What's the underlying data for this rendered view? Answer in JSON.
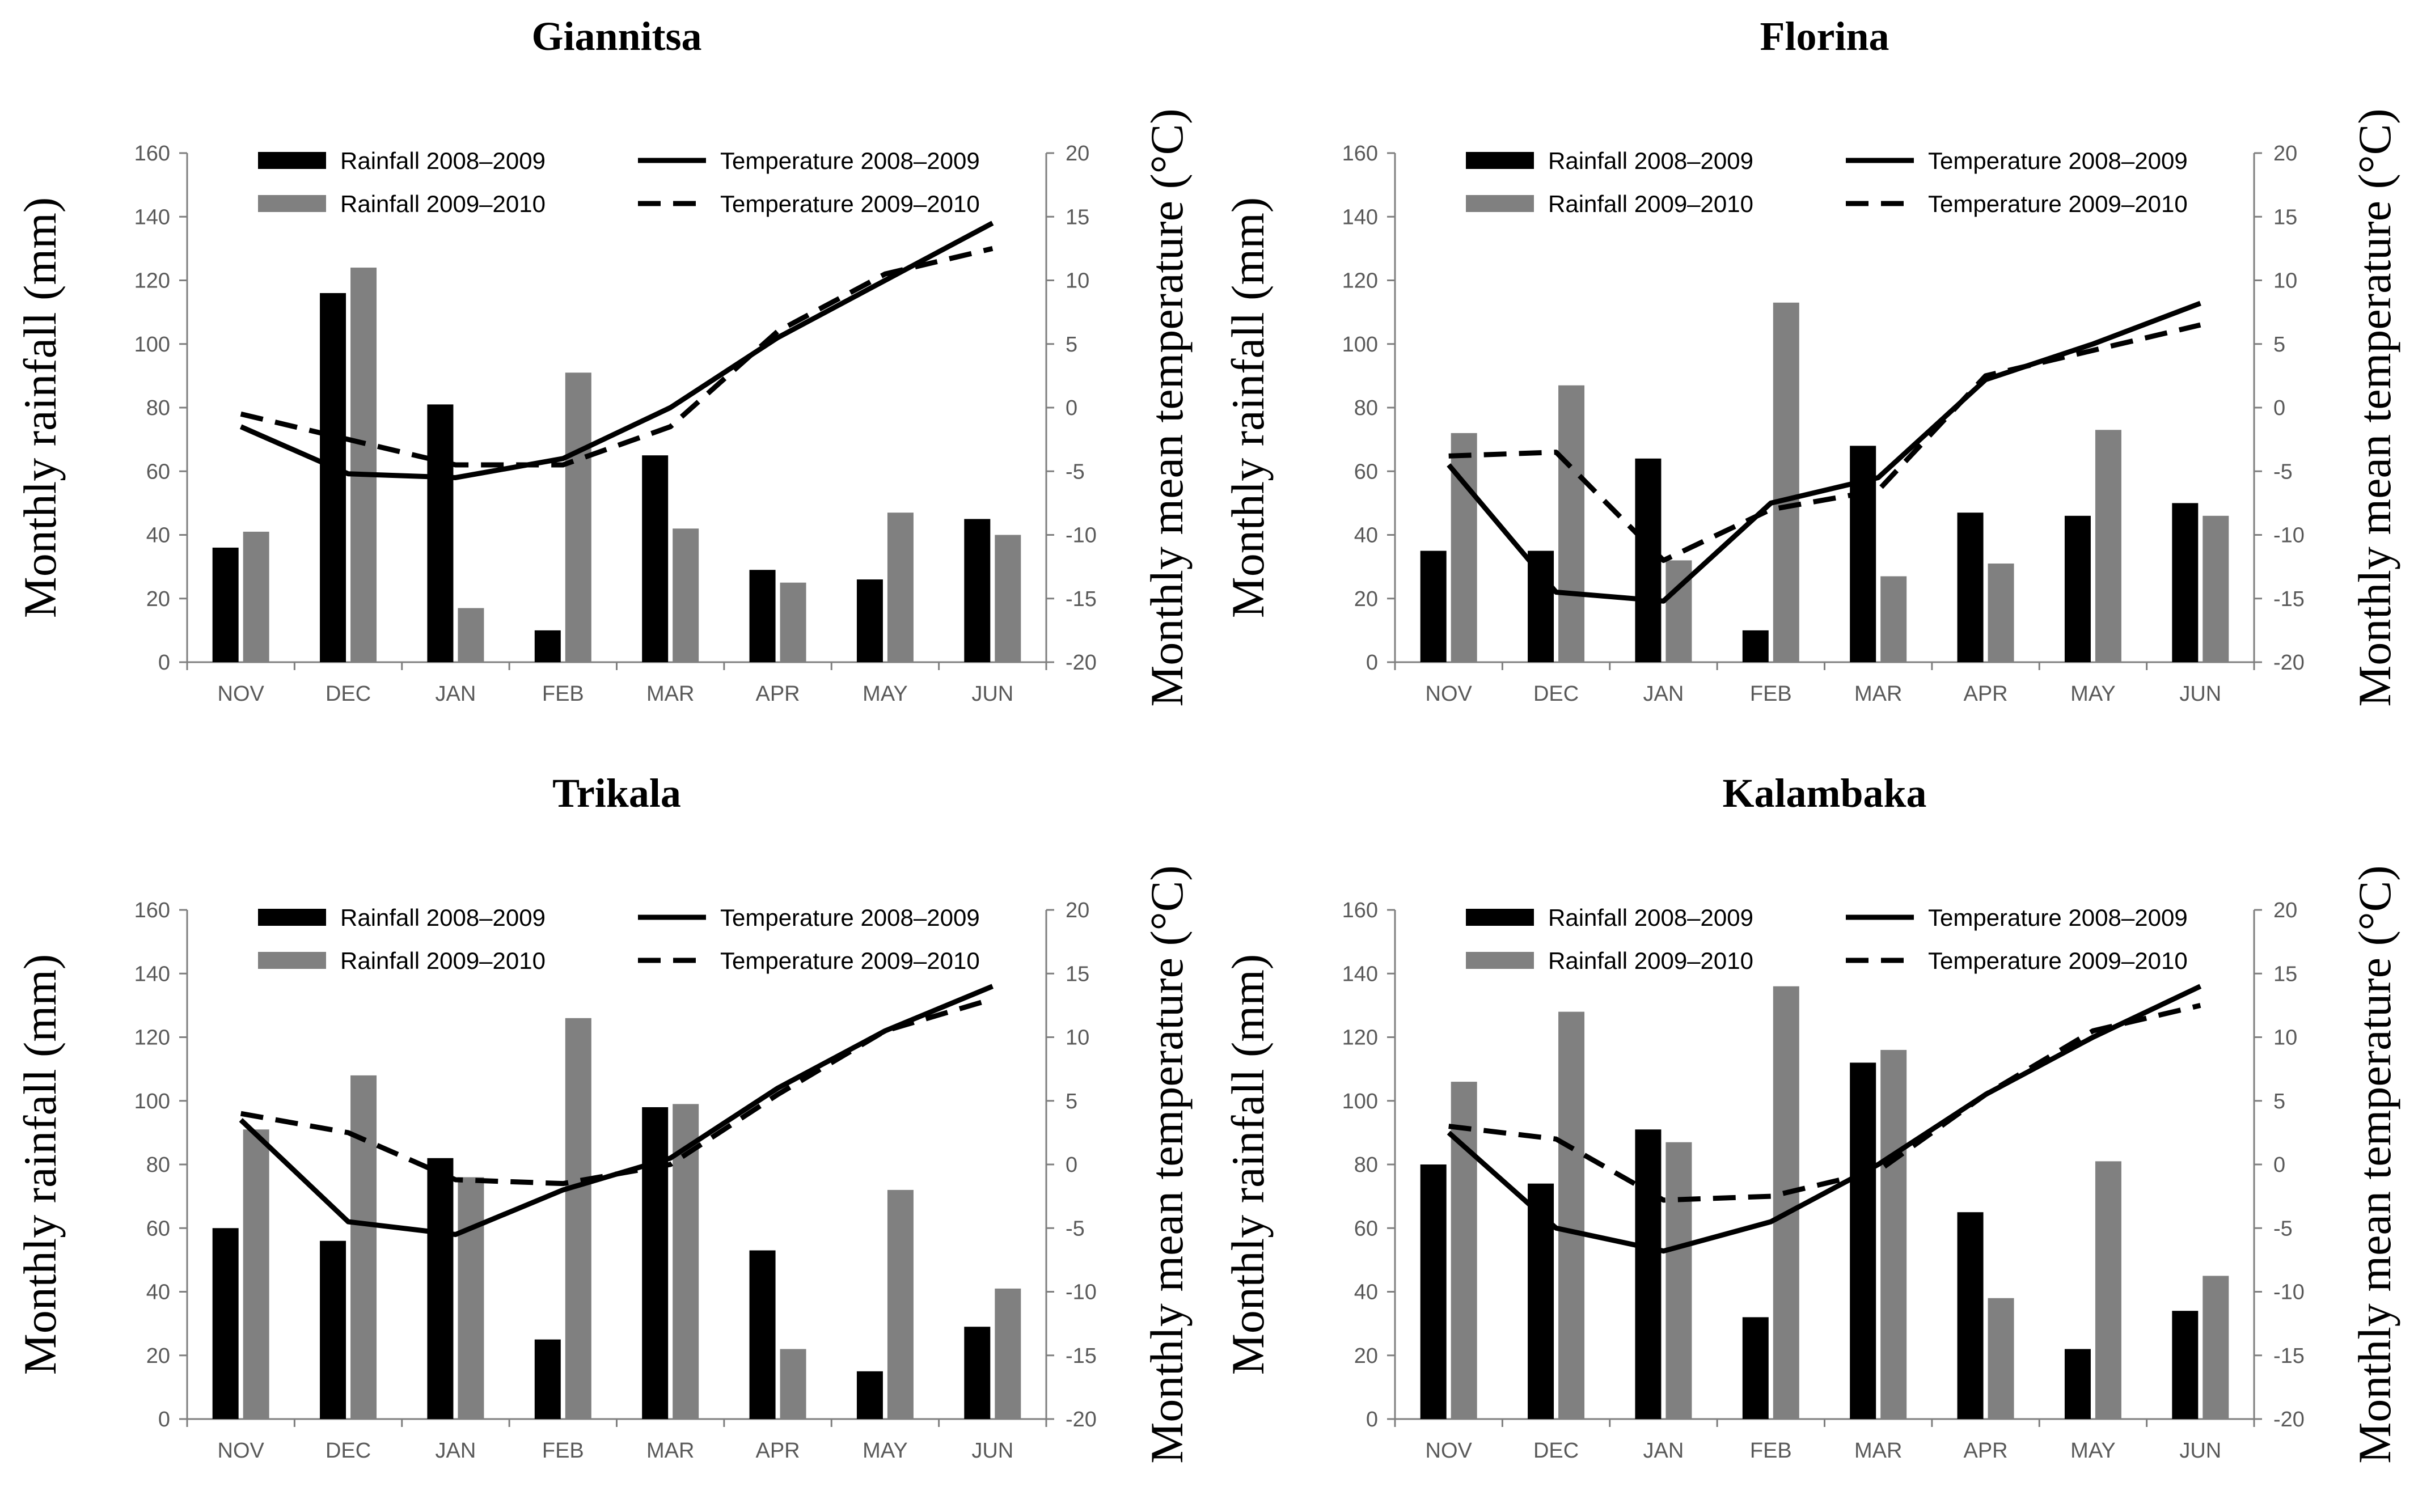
{
  "chart_data": [
    {
      "type": "bar",
      "title": "Giannitsa",
      "categories": [
        "NOV",
        "DEC",
        "JAN",
        "FEB",
        "MAR",
        "APR",
        "MAY",
        "JUN"
      ],
      "ylabel": "Monthly rainfall (mm)",
      "y2label": "Monthly mean temperature (°C)",
      "ylim": [
        0,
        160
      ],
      "yticks": [
        0,
        20,
        40,
        60,
        80,
        100,
        120,
        140,
        160
      ],
      "y2lim": [
        -20,
        20
      ],
      "y2ticks": [
        -20,
        -15,
        -10,
        -5,
        0,
        5,
        10,
        15,
        20
      ],
      "series": [
        {
          "name": "Rainfall 2008–2009",
          "type": "bar",
          "axis": "left",
          "color": "#000000",
          "values": [
            36,
            116,
            81,
            10,
            65,
            29,
            26,
            45
          ]
        },
        {
          "name": "Rainfall 2009–2010",
          "type": "bar",
          "axis": "left",
          "color": "#808080",
          "values": [
            41,
            124,
            17,
            91,
            42,
            25,
            47,
            40
          ]
        },
        {
          "name": "Temperature 2008–2009",
          "type": "line",
          "axis": "right",
          "style": "solid",
          "color": "#000000",
          "values": [
            -1.5,
            -5.2,
            -5.5,
            -4,
            0,
            5.5,
            10,
            14.5
          ]
        },
        {
          "name": "Temperature 2009–2010",
          "type": "line",
          "axis": "right",
          "style": "dashed",
          "color": "#000000",
          "values": [
            -0.5,
            -2.5,
            -4.5,
            -4.5,
            -1.5,
            6,
            10.5,
            12.5
          ]
        }
      ],
      "legend": "top"
    },
    {
      "type": "bar",
      "title": "Florina",
      "categories": [
        "NOV",
        "DEC",
        "JAN",
        "FEB",
        "MAR",
        "APR",
        "MAY",
        "JUN"
      ],
      "ylabel": "Monthly rainfall (mm)",
      "y2label": "Monthly mean temperature (°C)",
      "ylim": [
        0,
        160
      ],
      "yticks": [
        0,
        20,
        40,
        60,
        80,
        100,
        120,
        140,
        160
      ],
      "y2lim": [
        -20,
        20
      ],
      "y2ticks": [
        -20,
        -15,
        -10,
        -5,
        0,
        5,
        10,
        15,
        20
      ],
      "series": [
        {
          "name": "Rainfall 2008–2009",
          "type": "bar",
          "axis": "left",
          "color": "#000000",
          "values": [
            35,
            35,
            64,
            10,
            68,
            47,
            46,
            50
          ]
        },
        {
          "name": "Rainfall 2009–2010",
          "type": "bar",
          "axis": "left",
          "color": "#808080",
          "values": [
            72,
            87,
            32,
            113,
            27,
            31,
            73,
            46
          ]
        },
        {
          "name": "Temperature 2008–2009",
          "type": "line",
          "axis": "right",
          "style": "solid",
          "color": "#000000",
          "values": [
            -4.5,
            -14.5,
            -15.2,
            -7.5,
            -5.5,
            2.2,
            5,
            8.2
          ]
        },
        {
          "name": "Temperature 2009–2010",
          "type": "line",
          "axis": "right",
          "style": "dashed",
          "color": "#000000",
          "values": [
            -3.8,
            -3.5,
            -12,
            -8,
            -6.5,
            2.5,
            4.5,
            6.5
          ]
        }
      ],
      "legend": "top"
    },
    {
      "type": "bar",
      "title": "Trikala",
      "categories": [
        "NOV",
        "DEC",
        "JAN",
        "FEB",
        "MAR",
        "APR",
        "MAY",
        "JUN"
      ],
      "ylabel": "Monthly rainfall (mm)",
      "y2label": "Monthly mean temperature (°C)",
      "ylim": [
        0,
        160
      ],
      "yticks": [
        0,
        20,
        40,
        60,
        80,
        100,
        120,
        140,
        160
      ],
      "y2lim": [
        -20,
        20
      ],
      "y2ticks": [
        -20,
        -15,
        -10,
        -5,
        0,
        5,
        10,
        15,
        20
      ],
      "series": [
        {
          "name": "Rainfall 2008–2009",
          "type": "bar",
          "axis": "left",
          "color": "#000000",
          "values": [
            60,
            56,
            82,
            25,
            98,
            53,
            15,
            29
          ]
        },
        {
          "name": "Rainfall 2009–2010",
          "type": "bar",
          "axis": "left",
          "color": "#808080",
          "values": [
            91,
            108,
            76,
            126,
            99,
            22,
            72,
            41
          ]
        },
        {
          "name": "Temperature 2008–2009",
          "type": "line",
          "axis": "right",
          "style": "solid",
          "color": "#000000",
          "values": [
            3.5,
            -4.5,
            -5.5,
            -2,
            0.5,
            6,
            10.5,
            14
          ]
        },
        {
          "name": "Temperature 2009–2010",
          "type": "line",
          "axis": "right",
          "style": "dashed",
          "color": "#000000",
          "values": [
            4,
            2.5,
            -1.2,
            -1.5,
            0,
            5.5,
            10.5,
            13
          ]
        }
      ],
      "legend": "top"
    },
    {
      "type": "bar",
      "title": "Kalambaka",
      "categories": [
        "NOV",
        "DEC",
        "JAN",
        "FEB",
        "MAR",
        "APR",
        "MAY",
        "JUN"
      ],
      "ylabel": "Monthly rainfall (mm)",
      "y2label": "Monthly mean temperature (°C)",
      "ylim": [
        0,
        160
      ],
      "yticks": [
        0,
        20,
        40,
        60,
        80,
        100,
        120,
        140,
        160
      ],
      "y2lim": [
        -20,
        20
      ],
      "y2ticks": [
        -20,
        -15,
        -10,
        -5,
        0,
        5,
        10,
        15,
        20
      ],
      "series": [
        {
          "name": "Rainfall 2008–2009",
          "type": "bar",
          "axis": "left",
          "color": "#000000",
          "values": [
            80,
            74,
            91,
            32,
            112,
            65,
            22,
            34
          ]
        },
        {
          "name": "Rainfall 2009–2010",
          "type": "bar",
          "axis": "left",
          "color": "#808080",
          "values": [
            106,
            128,
            87,
            136,
            116,
            38,
            81,
            45
          ]
        },
        {
          "name": "Temperature 2008–2009",
          "type": "line",
          "axis": "right",
          "style": "solid",
          "color": "#000000",
          "values": [
            2.5,
            -5,
            -6.8,
            -4.5,
            0,
            5.5,
            10,
            14
          ]
        },
        {
          "name": "Temperature 2009–2010",
          "type": "line",
          "axis": "right",
          "style": "dashed",
          "color": "#000000",
          "values": [
            3,
            2,
            -2.8,
            -2.5,
            -0.5,
            5.5,
            10.5,
            12.5
          ]
        }
      ],
      "legend": "top"
    }
  ]
}
